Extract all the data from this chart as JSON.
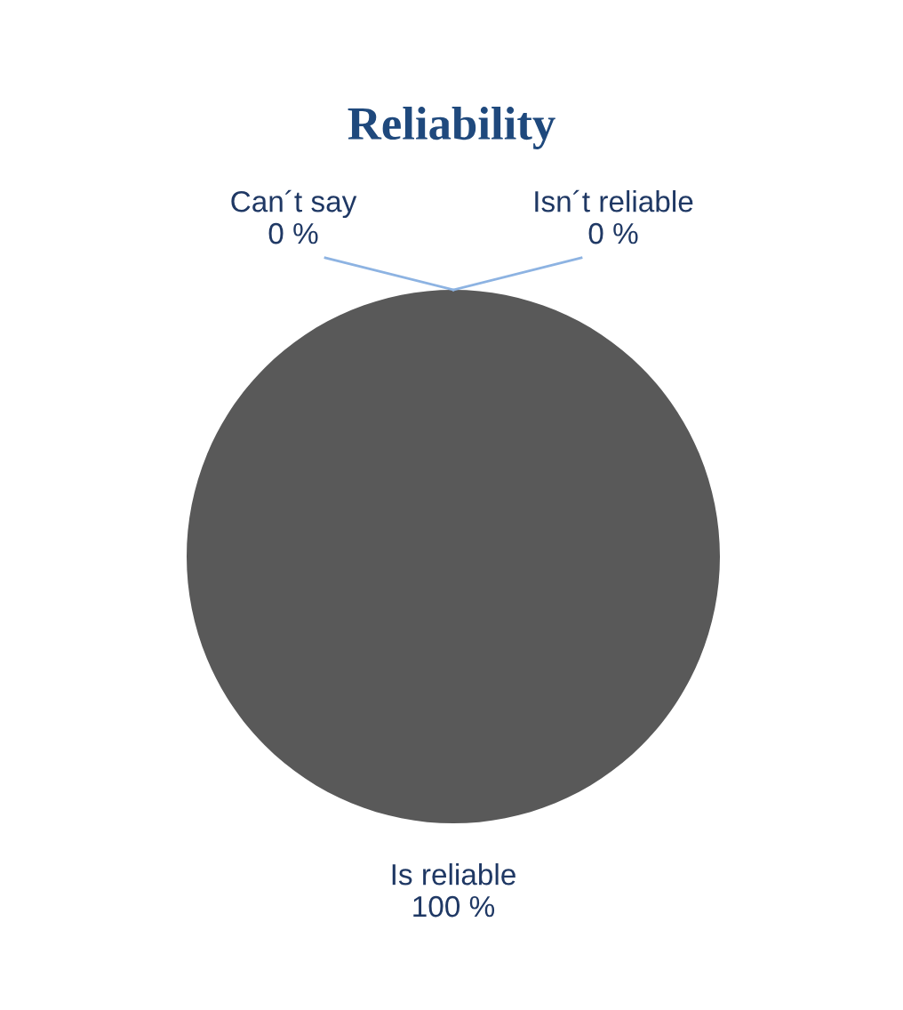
{
  "chart_data": {
    "type": "pie",
    "title": "Reliability",
    "categories": [
      "Is reliable",
      "Isn´t reliable",
      "Can´t say"
    ],
    "values": [
      100,
      0,
      0
    ],
    "value_labels": [
      "100 %",
      "0 %",
      "0 %"
    ],
    "colors": [
      "#595959",
      "#8db3e2",
      "#a6a6a6"
    ],
    "legend": false
  }
}
